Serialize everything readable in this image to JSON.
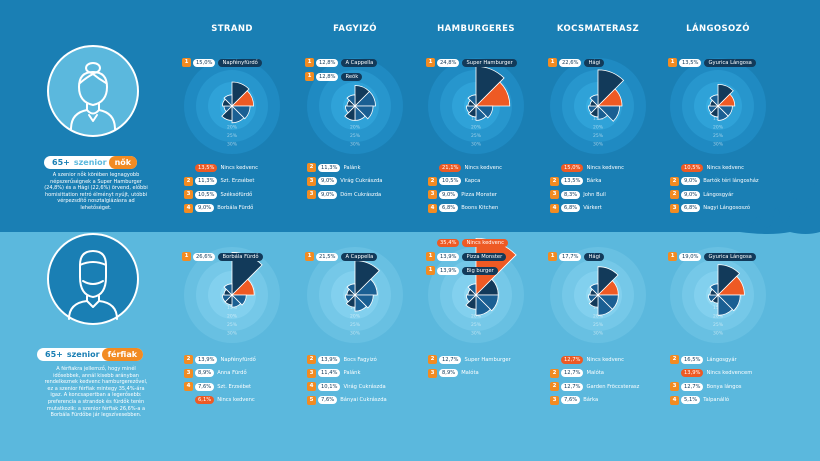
{
  "colors": {
    "dark": "#123a5a",
    "mid": "#1a5f93",
    "orange": "#ee5a24",
    "rank": "#f28b22"
  },
  "columns": [
    "STRAND",
    "FAGYIZÓ",
    "HAMBURGERES",
    "KOCSMATERASZ",
    "LÁNGOSOZÓ"
  ],
  "segments": {
    "women": {
      "age": "65+",
      "mid": "szenior",
      "tag": "nők"
    },
    "men": {
      "age": "65+",
      "mid": "szenior",
      "tag": "férfiak"
    }
  },
  "descriptions": {
    "women": "A szenior nők körében legnagyobb népszerűségnek a Super Hamburger (24,8%) és a Hági (22,6%) örvend, előbbi homisittation retró élményt nyújt, utóbbi vérpezsdítő nosztalgiázásra ad lehetőséget.",
    "men": "A férfiakra jellemző, hogy minél idősebbek, annál kisebb arányban rendelkeznek kedvenc hamburgerezővel, ez a szenior férfiak mintegy 35,4%-ára igaz. A koncsapertban a legerősebb: preferencia a strandok és fürdők terén mutatkozik: a szenior férfiak 26,6%-a a Borbála Fürdőbe jár legszívesebben."
  },
  "ring_ticks": [
    "15%",
    "20%",
    "25%",
    "30%"
  ],
  "chart_data": [
    {
      "type": "rose",
      "segment": "65+ szenior nők",
      "category": "STRAND",
      "values": [
        15.0,
        13.5,
        11.3,
        10.5,
        9.0,
        5.0,
        6.0,
        7.0
      ],
      "top": [
        {
          "rank": "1",
          "value": "15,0%",
          "name": "Napfényfürdő"
        }
      ],
      "list": [
        {
          "rank": "",
          "value": "13,5%",
          "name": "Nincs kedvenc",
          "highlight": true
        },
        {
          "rank": "2",
          "value": "11,3%",
          "name": "Szt. Erzsébet"
        },
        {
          "rank": "3",
          "value": "10,5%",
          "name": "Széksófürdő"
        },
        {
          "rank": "4",
          "value": "9,0%",
          "name": "Borbála Fürdő"
        }
      ]
    },
    {
      "type": "rose",
      "segment": "65+ szenior nők",
      "category": "FAGYIZÓ",
      "values": [
        12.8,
        12.8,
        11.3,
        9.0,
        9.0,
        6.0,
        5.0,
        7.0
      ],
      "top": [
        {
          "rank": "1",
          "value": "12,8%",
          "name": "A Cappella"
        },
        {
          "rank": "1",
          "value": "12,8%",
          "name": "Reök"
        }
      ],
      "list": [
        {
          "rank": "2",
          "value": "11,3%",
          "name": "Palánk"
        },
        {
          "rank": "3",
          "value": "9,0%",
          "name": "Virág Cukrászda"
        },
        {
          "rank": "3",
          "value": "9,0%",
          "name": "Dóm Cukrászda"
        }
      ]
    },
    {
      "type": "rose",
      "segment": "65+ szenior nők",
      "category": "HAMBURGERES",
      "values": [
        24.8,
        21.1,
        10.5,
        9.0,
        6.8,
        6.0,
        5.0,
        7.0
      ],
      "top": [
        {
          "rank": "1",
          "value": "24,8%",
          "name": "Super Hamburger"
        }
      ],
      "list": [
        {
          "rank": "",
          "value": "21,1%",
          "name": "Nincs kedvenc",
          "highlight": true
        },
        {
          "rank": "2",
          "value": "10,5%",
          "name": "Kapca"
        },
        {
          "rank": "3",
          "value": "9,0%",
          "name": "Pizza Monster"
        },
        {
          "rank": "4",
          "value": "6,8%",
          "name": "Boons Kitchen"
        }
      ]
    },
    {
      "type": "rose",
      "segment": "65+ szenior nők",
      "category": "KOCSMATERASZ",
      "values": [
        22.6,
        15.0,
        13.5,
        8.3,
        6.8,
        6.0,
        5.0,
        7.0
      ],
      "top": [
        {
          "rank": "1",
          "value": "22,6%",
          "name": "Hági"
        }
      ],
      "list": [
        {
          "rank": "",
          "value": "15,0%",
          "name": "Nincs kedvenc",
          "highlight": true
        },
        {
          "rank": "2",
          "value": "13,5%",
          "name": "Bárka"
        },
        {
          "rank": "3",
          "value": "8,3%",
          "name": "John Bull"
        },
        {
          "rank": "4",
          "value": "6,8%",
          "name": "Várkert"
        }
      ]
    },
    {
      "type": "rose",
      "segment": "65+ szenior nők",
      "category": "LÁNGOSOZÓ",
      "values": [
        13.5,
        10.5,
        9.0,
        9.0,
        6.8,
        6.0,
        5.0,
        7.0
      ],
      "top": [
        {
          "rank": "1",
          "value": "13,5%",
          "name": "Gyurica Lángosa"
        }
      ],
      "list": [
        {
          "rank": "",
          "value": "10,5%",
          "name": "Nincs kedvenc",
          "highlight": true
        },
        {
          "rank": "2",
          "value": "9,0%",
          "name": "Bartók téri lángosház"
        },
        {
          "rank": "2",
          "value": "9,0%",
          "name": "Lángosgyár"
        },
        {
          "rank": "3",
          "value": "6,8%",
          "name": "Nagyi Lángososzó"
        }
      ]
    },
    {
      "type": "rose",
      "segment": "65+ szenior férfiak",
      "category": "STRAND",
      "values": [
        26.6,
        13.9,
        8.9,
        7.6,
        6.1,
        6.0,
        5.0,
        7.0
      ],
      "top": [
        {
          "rank": "1",
          "value": "26,6%",
          "name": "Borbála Fürdő"
        }
      ],
      "list": [
        {
          "rank": "2",
          "value": "13,9%",
          "name": "Napfényfürdő"
        },
        {
          "rank": "3",
          "value": "8,9%",
          "name": "Anna Fürdő"
        },
        {
          "rank": "4",
          "value": "7,6%",
          "name": "Szt. Erzsébet"
        },
        {
          "rank": "",
          "value": "6,1%",
          "name": "Nincs kedvenc",
          "highlight": true
        }
      ]
    },
    {
      "type": "rose",
      "segment": "65+ szenior férfiak",
      "category": "FAGYIZÓ",
      "values": [
        21.5,
        13.9,
        11.4,
        10.1,
        7.6,
        6.0,
        5.0,
        7.0
      ],
      "top": [
        {
          "rank": "1",
          "value": "21,5%",
          "name": "A Cappella"
        }
      ],
      "list": [
        {
          "rank": "2",
          "value": "13,9%",
          "name": "Bocs Fagyizó"
        },
        {
          "rank": "3",
          "value": "11,4%",
          "name": "Palánk"
        },
        {
          "rank": "4",
          "value": "10,1%",
          "name": "Virág Cukrászda"
        },
        {
          "rank": "5",
          "value": "7,6%",
          "name": "Bányai Cukrászda"
        }
      ]
    },
    {
      "type": "rose",
      "segment": "65+ szenior férfiak",
      "category": "HAMBURGERES",
      "values": [
        35.4,
        13.9,
        13.9,
        12.7,
        8.9,
        6.0,
        5.0,
        7.0
      ],
      "top": [
        {
          "rank": "",
          "value": "35,4%",
          "name": "Nincs kedvenc",
          "highlight": true
        },
        {
          "rank": "1",
          "value": "13,9%",
          "name": "Pizza Monster"
        },
        {
          "rank": "1",
          "value": "13,9%",
          "name": "Big burger"
        }
      ],
      "list": [
        {
          "rank": "2",
          "value": "12,7%",
          "name": "Super Hamburger"
        },
        {
          "rank": "3",
          "value": "8,9%",
          "name": "Malóta"
        }
      ]
    },
    {
      "type": "rose",
      "segment": "65+ szenior férfiak",
      "category": "KOCSMATERASZ",
      "values": [
        17.7,
        12.7,
        12.7,
        12.7,
        7.6,
        6.0,
        5.0,
        7.0
      ],
      "top": [
        {
          "rank": "1",
          "value": "17,7%",
          "name": "Hági"
        }
      ],
      "list": [
        {
          "rank": "",
          "value": "12,7%",
          "name": "Nincs kedvenc",
          "highlight": true
        },
        {
          "rank": "2",
          "value": "12,7%",
          "name": "Malóta"
        },
        {
          "rank": "2",
          "value": "12,7%",
          "name": "Garden Fröccsterasz"
        },
        {
          "rank": "3",
          "value": "7,6%",
          "name": "Bárka"
        }
      ]
    },
    {
      "type": "rose",
      "segment": "65+ szenior férfiak",
      "category": "LÁNGOSOZÓ",
      "values": [
        19.0,
        16.5,
        13.9,
        12.7,
        5.1,
        6.0,
        5.0,
        7.0
      ],
      "top": [
        {
          "rank": "1",
          "value": "19,0%",
          "name": "Gyurica Lángosa"
        }
      ],
      "list": [
        {
          "rank": "2",
          "value": "16,5%",
          "name": "Lángosgyár"
        },
        {
          "rank": "",
          "value": "13,9%",
          "name": "Nincs kedvencem",
          "highlight": true
        },
        {
          "rank": "3",
          "value": "12,7%",
          "name": "Bonya lángos"
        },
        {
          "rank": "4",
          "value": "5,1%",
          "name": "Talpanálló"
        }
      ]
    }
  ]
}
